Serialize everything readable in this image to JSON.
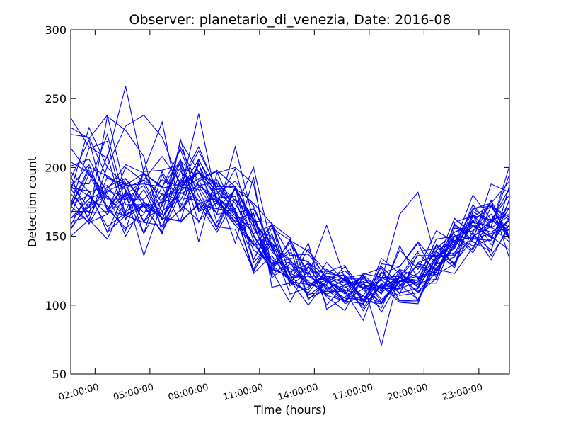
{
  "chart_data": {
    "type": "line",
    "title": "Observer: planetario_di_venezia, Date: 2016-08",
    "xlabel": "Time (hours)",
    "ylabel": "Detection count",
    "xlim": [
      0.67,
      24.67
    ],
    "ylim": [
      50,
      300
    ],
    "x_ticks": [
      {
        "value": 2,
        "label": "02:00:00"
      },
      {
        "value": 5,
        "label": "05:00:00"
      },
      {
        "value": 8,
        "label": "08:00:00"
      },
      {
        "value": 11,
        "label": "11:00:00"
      },
      {
        "value": 14,
        "label": "14:00:00"
      },
      {
        "value": 17,
        "label": "17:00:00"
      },
      {
        "value": 20,
        "label": "20:00:00"
      },
      {
        "value": 23,
        "label": "23:00:00"
      }
    ],
    "y_ticks": [
      50,
      100,
      150,
      200,
      250,
      300
    ],
    "series_color": "#0000ff",
    "grid": false,
    "x": [
      0.67,
      1.67,
      2.67,
      3.67,
      4.67,
      5.67,
      6.67,
      7.67,
      8.67,
      9.67,
      10.67,
      11.67,
      12.67,
      13.67,
      14.67,
      15.67,
      16.67,
      17.67,
      18.67,
      19.67,
      20.67,
      21.67,
      22.67,
      23.67,
      24.67
    ],
    "series": [
      {
        "values": [
          236,
          215,
          207,
          259,
          196,
          168,
          182,
          239,
          175,
          161,
          158,
          129,
          118,
          100,
          118,
          125,
          112,
          113,
          107,
          109,
          127,
          142,
          161,
          157,
          195
        ]
      },
      {
        "values": [
          160,
          165,
          237,
          227,
          208,
          152,
          190,
          215,
          183,
          170,
          200,
          142,
          117,
          141,
          118,
          111,
          107,
          98,
          126,
          103,
          131,
          163,
          151,
          140,
          177
        ]
      },
      {
        "values": [
          172,
          200,
          194,
          185,
          191,
          208,
          189,
          196,
          178,
          165,
          143,
          158,
          114,
          124,
          106,
          96,
          121,
          104,
          117,
          123,
          143,
          129,
          166,
          150,
          162
        ]
      },
      {
        "values": [
          181,
          167,
          168,
          200,
          190,
          163,
          161,
          205,
          184,
          186,
          156,
          133,
          127,
          115,
          120,
          101,
          107,
          124,
          114,
          130,
          122,
          130,
          153,
          133,
          159
        ]
      },
      {
        "values": [
          155,
          175,
          172,
          154,
          198,
          233,
          168,
          186,
          166,
          215,
          161,
          144,
          108,
          113,
          123,
          121,
          103,
          114,
          102,
          101,
          139,
          127,
          168,
          160,
          171
        ]
      },
      {
        "values": [
          189,
          188,
          224,
          173,
          173,
          152,
          221,
          170,
          181,
          190,
          172,
          141,
          119,
          108,
          110,
          110,
          89,
          124,
          108,
          138,
          125,
          150,
          154,
          166,
          148
        ]
      },
      {
        "values": [
          194,
          161,
          201,
          230,
          238,
          222,
          187,
          196,
          183,
          145,
          193,
          113,
          116,
          131,
          116,
          120,
          122,
          111,
          121,
          109,
          119,
          156,
          153,
          176,
          150
        ]
      },
      {
        "values": [
          150,
          162,
          193,
          184,
          161,
          172,
          204,
          168,
          174,
          158,
          144,
          144,
          122,
          145,
          97,
          106,
          115,
          101,
          118,
          121,
          124,
          145,
          180,
          162,
          154
        ]
      },
      {
        "values": [
          183,
          229,
          200,
          187,
          196,
          174,
          206,
          169,
          176,
          160,
          145,
          125,
          102,
          128,
          108,
          115,
          117,
          95,
          118,
          116,
          116,
          150,
          148,
          147,
          162
        ]
      },
      {
        "values": [
          201,
          206,
          181,
          150,
          174,
          163,
          186,
          184,
          155,
          185,
          174,
          159,
          136,
          137,
          120,
          114,
          98,
          116,
          103,
          104,
          132,
          147,
          149,
          162,
          166
        ]
      },
      {
        "values": [
          163,
          171,
          183,
          189,
          152,
          177,
          200,
          146,
          196,
          200,
          188,
          128,
          141,
          104,
          117,
          110,
          122,
          127,
          103,
          103,
          136,
          141,
          173,
          156,
          165
        ]
      },
      {
        "values": [
          163,
          177,
          184,
          202,
          196,
          186,
          205,
          191,
          166,
          168,
          133,
          159,
          149,
          114,
          115,
          128,
          111,
          102,
          117,
          118,
          148,
          150,
          143,
          148,
          176
        ]
      },
      {
        "values": [
          229,
          221,
          238,
          182,
          136,
          174,
          215,
          187,
          178,
          179,
          133,
          156,
          147,
          105,
          111,
          119,
          96,
          115,
          111,
          131,
          136,
          136,
          170,
          174,
          190
        ]
      },
      {
        "values": [
          197,
          182,
          187,
          168,
          197,
          198,
          202,
          160,
          191,
          169,
          140,
          130,
          138,
          131,
          121,
          122,
          104,
          120,
          113,
          130,
          127,
          144,
          164,
          173,
          149
        ]
      },
      {
        "values": [
          192,
          220,
          169,
          165,
          175,
          163,
          183,
          192,
          197,
          167,
          152,
          158,
          123,
          118,
          119,
          109,
          100,
          130,
          128,
          145,
          120,
          159,
          147,
          188,
          182
        ]
      },
      {
        "values": [
          177,
          159,
          183,
          179,
          152,
          195,
          171,
          202,
          176,
          163,
          145,
          127,
          120,
          121,
          113,
          103,
          112,
          113,
          126,
          120,
          129,
          158,
          146,
          139,
          187
        ]
      },
      {
        "values": [
          185,
          183,
          153,
          165,
          160,
          186,
          213,
          179,
          157,
          155,
          125,
          145,
          133,
          114,
          118,
          108,
          122,
          102,
          120,
          118,
          135,
          145,
          170,
          161,
          157
        ]
      },
      {
        "values": [
          172,
          160,
          166,
          192,
          175,
          166,
          219,
          197,
          170,
          184,
          163,
          139,
          124,
          130,
          111,
          102,
          120,
          112,
          112,
          117,
          130,
          131,
          148,
          152,
          157
        ]
      },
      {
        "values": [
          224,
          222,
          192,
          188,
          160,
          158,
          183,
          206,
          178,
          169,
          124,
          150,
          117,
          115,
          112,
          118,
          103,
          101,
          120,
          110,
          124,
          143,
          170,
          172,
          148
        ]
      },
      {
        "values": [
          204,
          196,
          177,
          177,
          177,
          191,
          186,
          196,
          188,
          166,
          126,
          152,
          117,
          109,
          126,
          118,
          113,
          118,
          109,
          112,
          134,
          151,
          140,
          172,
          162
        ]
      },
      {
        "values": [
          173,
          180,
          157,
          167,
          184,
          157,
          169,
          190,
          198,
          186,
          159,
          124,
          148,
          121,
          121,
          116,
          116,
          71,
          124,
          113,
          144,
          136,
          149,
          176,
          134
        ]
      },
      {
        "values": [
          158,
          183,
          153,
          183,
          161,
          181,
          176,
          203,
          160,
          185,
          147,
          126,
          121,
          121,
          114,
          105,
          104,
          123,
          128,
          146,
          130,
          135,
          161,
          172,
          164
        ]
      },
      {
        "values": [
          186,
          202,
          169,
          181,
          167,
          175,
          188,
          197,
          186,
          186,
          131,
          146,
          116,
          111,
          131,
          117,
          115,
          109,
          120,
          128,
          126,
          123,
          142,
          162,
          151
        ]
      },
      {
        "values": [
          173,
          214,
          219,
          165,
          173,
          152,
          192,
          176,
          157,
          186,
          161,
          160,
          122,
          107,
          117,
          110,
          102,
          128,
          115,
          104,
          126,
          142,
          162,
          136,
          156
        ]
      },
      {
        "values": [
          185,
          162,
          148,
          177,
          187,
          162,
          197,
          187,
          175,
          199,
          150,
          130,
          131,
          117,
          108,
          113,
          117,
          113,
          120,
          136,
          136,
          153,
          160,
          157,
          146
        ]
      },
      {
        "values": [
          171,
          198,
          170,
          156,
          166,
          197,
          174,
          161,
          175,
          163,
          166,
          129,
          134,
          132,
          100,
          115,
          119,
          108,
          143,
          119,
          140,
          146,
          150,
          157,
          201
        ]
      },
      {
        "values": [
          214,
          196,
          179,
          163,
          172,
          175,
          178,
          176,
          177,
          158,
          167,
          120,
          130,
          115,
          121,
          119,
          119,
          110,
          140,
          126,
          154,
          146,
          157,
          150,
          140
        ]
      },
      {
        "values": [
          156,
          173,
          179,
          166,
          172,
          164,
          161,
          173,
          170,
          168,
          123,
          136,
          117,
          128,
          118,
          103,
          101,
          120,
          118,
          115,
          143,
          130,
          165,
          162,
          180
        ]
      },
      {
        "values": [
          187,
          171,
          209,
          162,
          196,
          185,
          188,
          212,
          185,
          174,
          151,
          130,
          145,
          124,
          107,
          103,
          123,
          120,
          121,
          139,
          141,
          153,
          158,
          149,
          171
        ]
      },
      {
        "values": [
          166,
          195,
          170,
          187,
          188,
          186,
          160,
          174,
          153,
          177,
          163,
          126,
          147,
          139,
          124,
          129,
          100,
          134,
          123,
          113,
          134,
          138,
          158,
          153,
          161
        ]
      },
      {
        "values": [
          168,
          168,
          186,
          192,
          172,
          153,
          181,
          187,
          189,
          176,
          160,
          122,
          132,
          122,
          158,
          119,
          112,
          118,
          166,
          182,
          132,
          150,
          138,
          161,
          185
        ]
      },
      {
        "values": [
          188,
          179,
          166,
          180,
          191,
          180,
          182,
          174,
          178,
          167,
          170,
          143,
          132,
          123,
          125,
          119,
          106,
          102,
          121,
          116,
          119,
          160,
          165,
          144,
          164
        ]
      }
    ]
  }
}
